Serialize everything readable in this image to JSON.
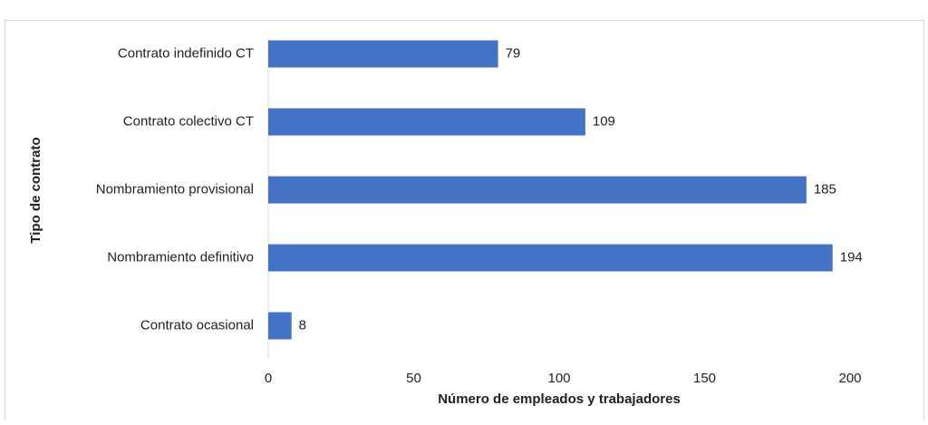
{
  "chart_data": {
    "type": "bar",
    "orientation": "horizontal",
    "categories": [
      "Contrato indefinido CT",
      "Contrato colectivo CT",
      "Nombramiento provisional",
      "Nombramiento definitivo",
      "Contrato ocasional"
    ],
    "values": [
      79,
      109,
      185,
      194,
      8
    ],
    "color": "#4472c4",
    "x_label": "Número de empleados y trabajadores",
    "y_label": "Tipo de contrato",
    "xlim": [
      0,
      200
    ],
    "xticks": [
      0,
      50,
      100,
      150,
      200
    ],
    "grid": false
  }
}
